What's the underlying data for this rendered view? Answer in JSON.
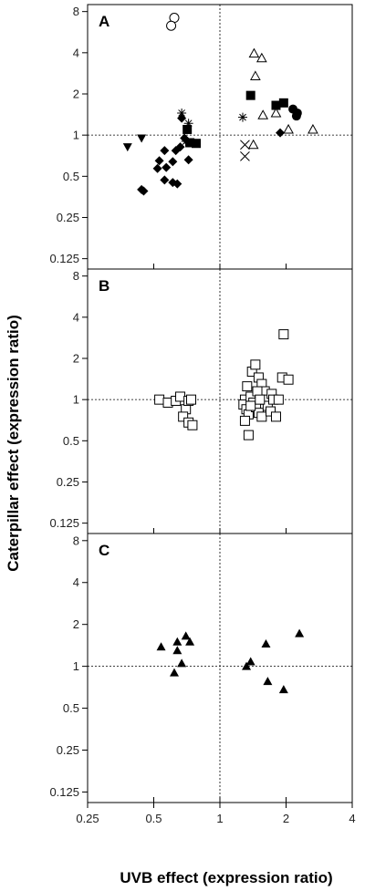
{
  "chart_data": {
    "type": "scatter",
    "xlabel": "UVB effect (expression ratio)",
    "ylabel": "Caterpillar effect (expression ratio)",
    "x_scale": "log2",
    "y_scale": "log2",
    "xlim": [
      0.25,
      4
    ],
    "ylim": [
      0.105,
      9
    ],
    "x_ticks": [
      0.25,
      0.5,
      1,
      2,
      4
    ],
    "x_tick_labels": [
      "0.25",
      "0.5",
      "1",
      "2",
      "4"
    ],
    "y_ticks": [
      0.125,
      0.25,
      0.5,
      1,
      2,
      4,
      8
    ],
    "y_tick_labels": [
      "0.125",
      "0.25",
      "0.5",
      "1",
      "2",
      "4",
      "8"
    ],
    "reference_lines": {
      "x": 1,
      "y": 1,
      "style": "dotted"
    },
    "panels": [
      {
        "label": "A",
        "series": [
          {
            "marker": "circle-open",
            "points": [
              [
                0.62,
                7.2
              ],
              [
                0.6,
                6.3
              ]
            ]
          },
          {
            "marker": "triangle-down-filled",
            "points": [
              [
                0.38,
                0.82
              ],
              [
                0.44,
                0.95
              ]
            ]
          },
          {
            "marker": "asterisk",
            "points": [
              [
                0.67,
                1.45
              ],
              [
                0.72,
                1.22
              ],
              [
                0.7,
                0.9
              ],
              [
                1.27,
                1.35
              ]
            ]
          },
          {
            "marker": "diamond-filled",
            "points": [
              [
                0.44,
                0.4
              ],
              [
                0.45,
                0.39
              ],
              [
                0.52,
                0.57
              ],
              [
                0.53,
                0.65
              ],
              [
                0.57,
                0.58
              ],
              [
                0.56,
                0.77
              ],
              [
                0.61,
                0.64
              ],
              [
                0.63,
                0.77
              ],
              [
                0.66,
                0.82
              ],
              [
                0.72,
                0.66
              ],
              [
                0.72,
                0.88
              ],
              [
                0.67,
                1.33
              ],
              [
                0.69,
                0.95
              ],
              [
                0.56,
                0.47
              ],
              [
                0.61,
                0.45
              ],
              [
                0.64,
                0.44
              ],
              [
                1.88,
                1.04
              ]
            ]
          },
          {
            "marker": "square-filled",
            "points": [
              [
                0.71,
                1.1
              ],
              [
                0.73,
                0.88
              ],
              [
                0.78,
                0.87
              ],
              [
                1.38,
                1.95
              ],
              [
                1.8,
                1.65
              ],
              [
                1.95,
                1.72
              ]
            ]
          },
          {
            "marker": "triangle-up-open",
            "points": [
              [
                1.43,
                3.95
              ],
              [
                1.55,
                3.65
              ],
              [
                1.45,
                2.7
              ],
              [
                1.57,
                1.4
              ],
              [
                1.8,
                1.45
              ],
              [
                2.05,
                1.1
              ],
              [
                1.42,
                0.85
              ],
              [
                2.65,
                1.1
              ]
            ]
          },
          {
            "marker": "x",
            "points": [
              [
                1.3,
                0.85
              ],
              [
                1.3,
                0.7
              ]
            ]
          },
          {
            "marker": "circle-filled",
            "points": [
              [
                2.15,
                1.55
              ],
              [
                2.25,
                1.45
              ],
              [
                2.23,
                1.38
              ]
            ]
          }
        ]
      },
      {
        "label": "B",
        "series": [
          {
            "marker": "square-open",
            "points": [
              [
                0.53,
                1.0
              ],
              [
                0.58,
                0.95
              ],
              [
                0.63,
                0.98
              ],
              [
                0.66,
                1.05
              ],
              [
                0.7,
                0.85
              ],
              [
                0.72,
                0.98
              ],
              [
                0.74,
                1.0
              ],
              [
                0.68,
                0.75
              ],
              [
                0.72,
                0.68
              ],
              [
                0.75,
                0.65
              ],
              [
                1.3,
                1.0
              ],
              [
                1.28,
                0.92
              ],
              [
                1.32,
                0.85
              ],
              [
                1.35,
                0.78
              ],
              [
                1.3,
                0.7
              ],
              [
                1.33,
                1.25
              ],
              [
                1.38,
                1.05
              ],
              [
                1.42,
                0.95
              ],
              [
                1.46,
                0.88
              ],
              [
                1.5,
                0.8
              ],
              [
                1.55,
                0.75
              ],
              [
                1.4,
                1.6
              ],
              [
                1.45,
                1.8
              ],
              [
                1.5,
                1.45
              ],
              [
                1.55,
                1.3
              ],
              [
                1.6,
                1.15
              ],
              [
                1.62,
                1.0
              ],
              [
                1.65,
                0.9
              ],
              [
                1.7,
                0.82
              ],
              [
                1.72,
                1.1
              ],
              [
                1.75,
                1.0
              ],
              [
                1.8,
                0.75
              ],
              [
                1.48,
                1.15
              ],
              [
                1.35,
                0.55
              ],
              [
                1.95,
                3.0
              ],
              [
                1.92,
                1.45
              ],
              [
                2.05,
                1.4
              ],
              [
                1.85,
                1.0
              ],
              [
                1.38,
                0.9
              ],
              [
                1.52,
                1.0
              ]
            ]
          }
        ]
      },
      {
        "label": "C",
        "series": [
          {
            "marker": "triangle-up-filled",
            "points": [
              [
                0.54,
                1.38
              ],
              [
                0.62,
                0.9
              ],
              [
                0.64,
                1.5
              ],
              [
                0.67,
                1.05
              ],
              [
                0.7,
                1.65
              ],
              [
                0.73,
                1.5
              ],
              [
                0.64,
                1.3
              ],
              [
                1.32,
                1.0
              ],
              [
                1.38,
                1.08
              ],
              [
                1.62,
                1.45
              ],
              [
                1.65,
                0.78
              ],
              [
                1.95,
                0.68
              ],
              [
                2.3,
                1.72
              ]
            ]
          }
        ]
      }
    ]
  }
}
